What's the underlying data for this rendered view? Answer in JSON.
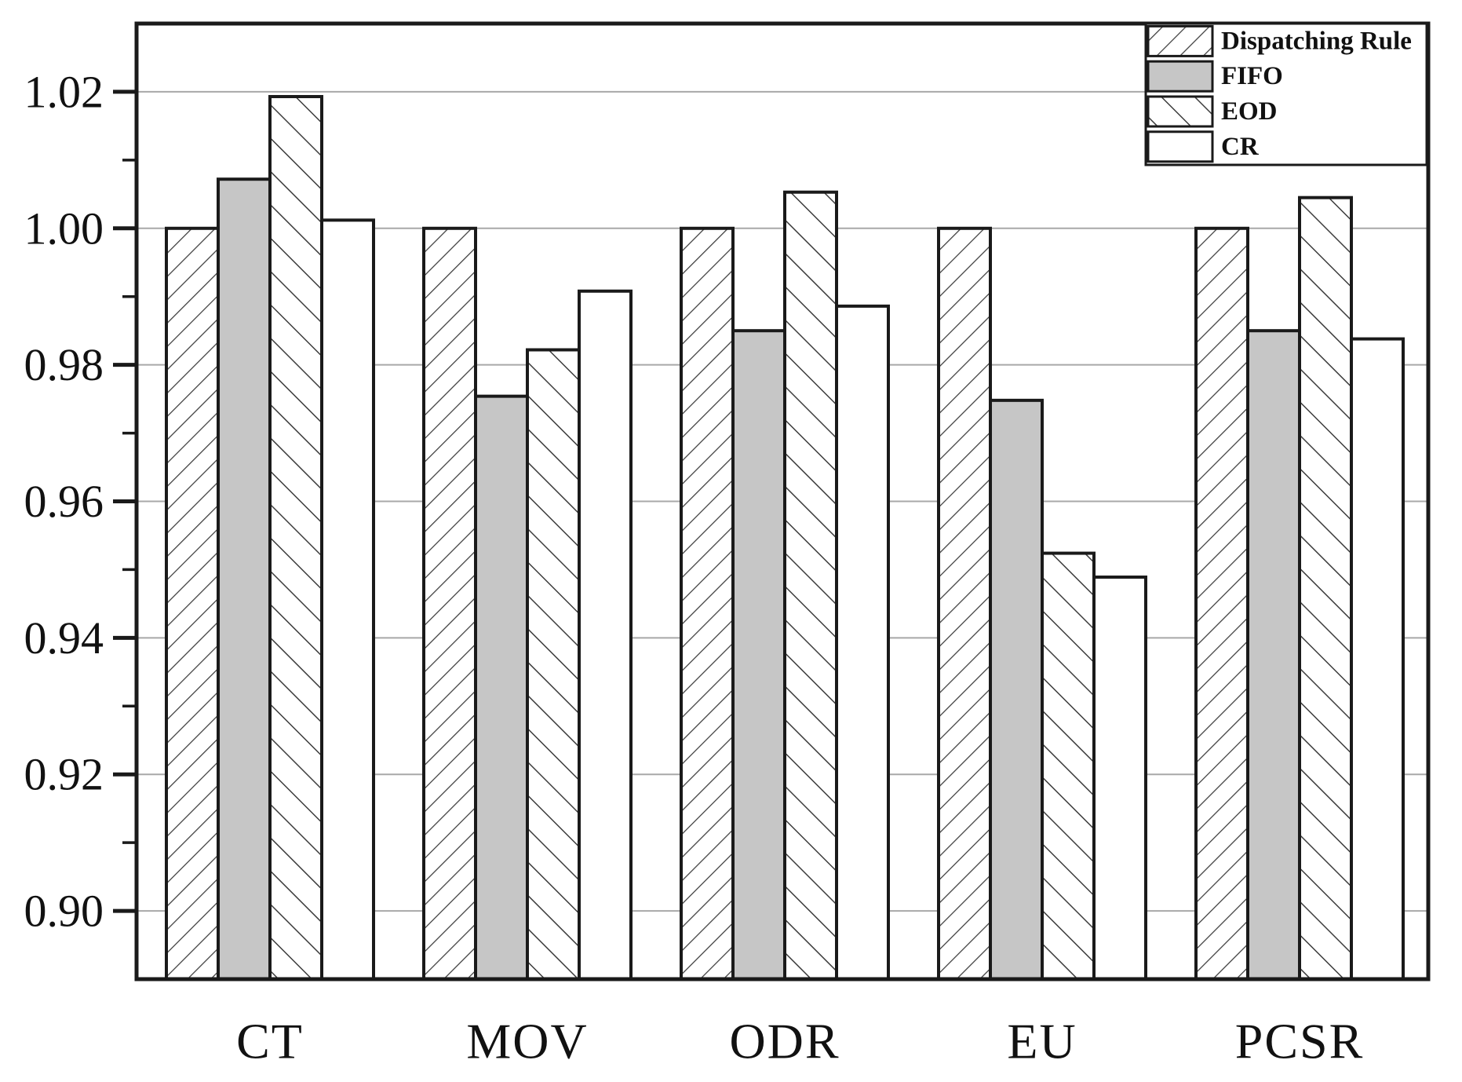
{
  "figure": {
    "background": "#ffffff",
    "kind": "grouped-bar-chart"
  },
  "colors": {
    "bar_border": "#1a1a1a",
    "hatch_line": "#3c3c3c",
    "grid_line": "#a8a8a8",
    "axis_line": "#1a1a1a",
    "text": "#111111",
    "fifo_gray": "#c6c6c6",
    "white": "#ffffff"
  },
  "chart_data": {
    "type": "bar",
    "title": "",
    "xlabel": "",
    "ylabel": "",
    "categories": [
      "CT",
      "MOV",
      "ODR",
      "EU",
      "PCSR"
    ],
    "series": [
      {
        "name": "Dispatching Rule",
        "pattern": "forward-hatch",
        "values": [
          1.0,
          1.0,
          1.0,
          1.0,
          1.0
        ]
      },
      {
        "name": "FIFO",
        "pattern": "solid-gray",
        "color": "#c6c6c6",
        "values": [
          1.0072,
          0.9754,
          0.985,
          0.9748,
          0.985
        ]
      },
      {
        "name": "EOD",
        "pattern": "back-hatch",
        "values": [
          1.0193,
          0.9822,
          1.0053,
          0.9524,
          1.0045
        ]
      },
      {
        "name": "CR",
        "pattern": "white",
        "values": [
          1.0012,
          0.9908,
          0.9886,
          0.9489,
          0.9838
        ]
      }
    ],
    "ylim": [
      0.89,
      1.03
    ],
    "yticks": [
      0.9,
      0.92,
      0.94,
      0.96,
      0.98,
      1.0,
      1.02
    ],
    "ytick_labels": [
      "0.90",
      "0.92",
      "0.94",
      "0.96",
      "0.98",
      "1.00",
      "1.02"
    ],
    "minor_ytick_step": 0.01,
    "grid": "horizontal-major",
    "legend_position": "top-right",
    "legend_labels": [
      "Dispatching Rule",
      "FIFO",
      "EOD",
      "CR"
    ]
  }
}
